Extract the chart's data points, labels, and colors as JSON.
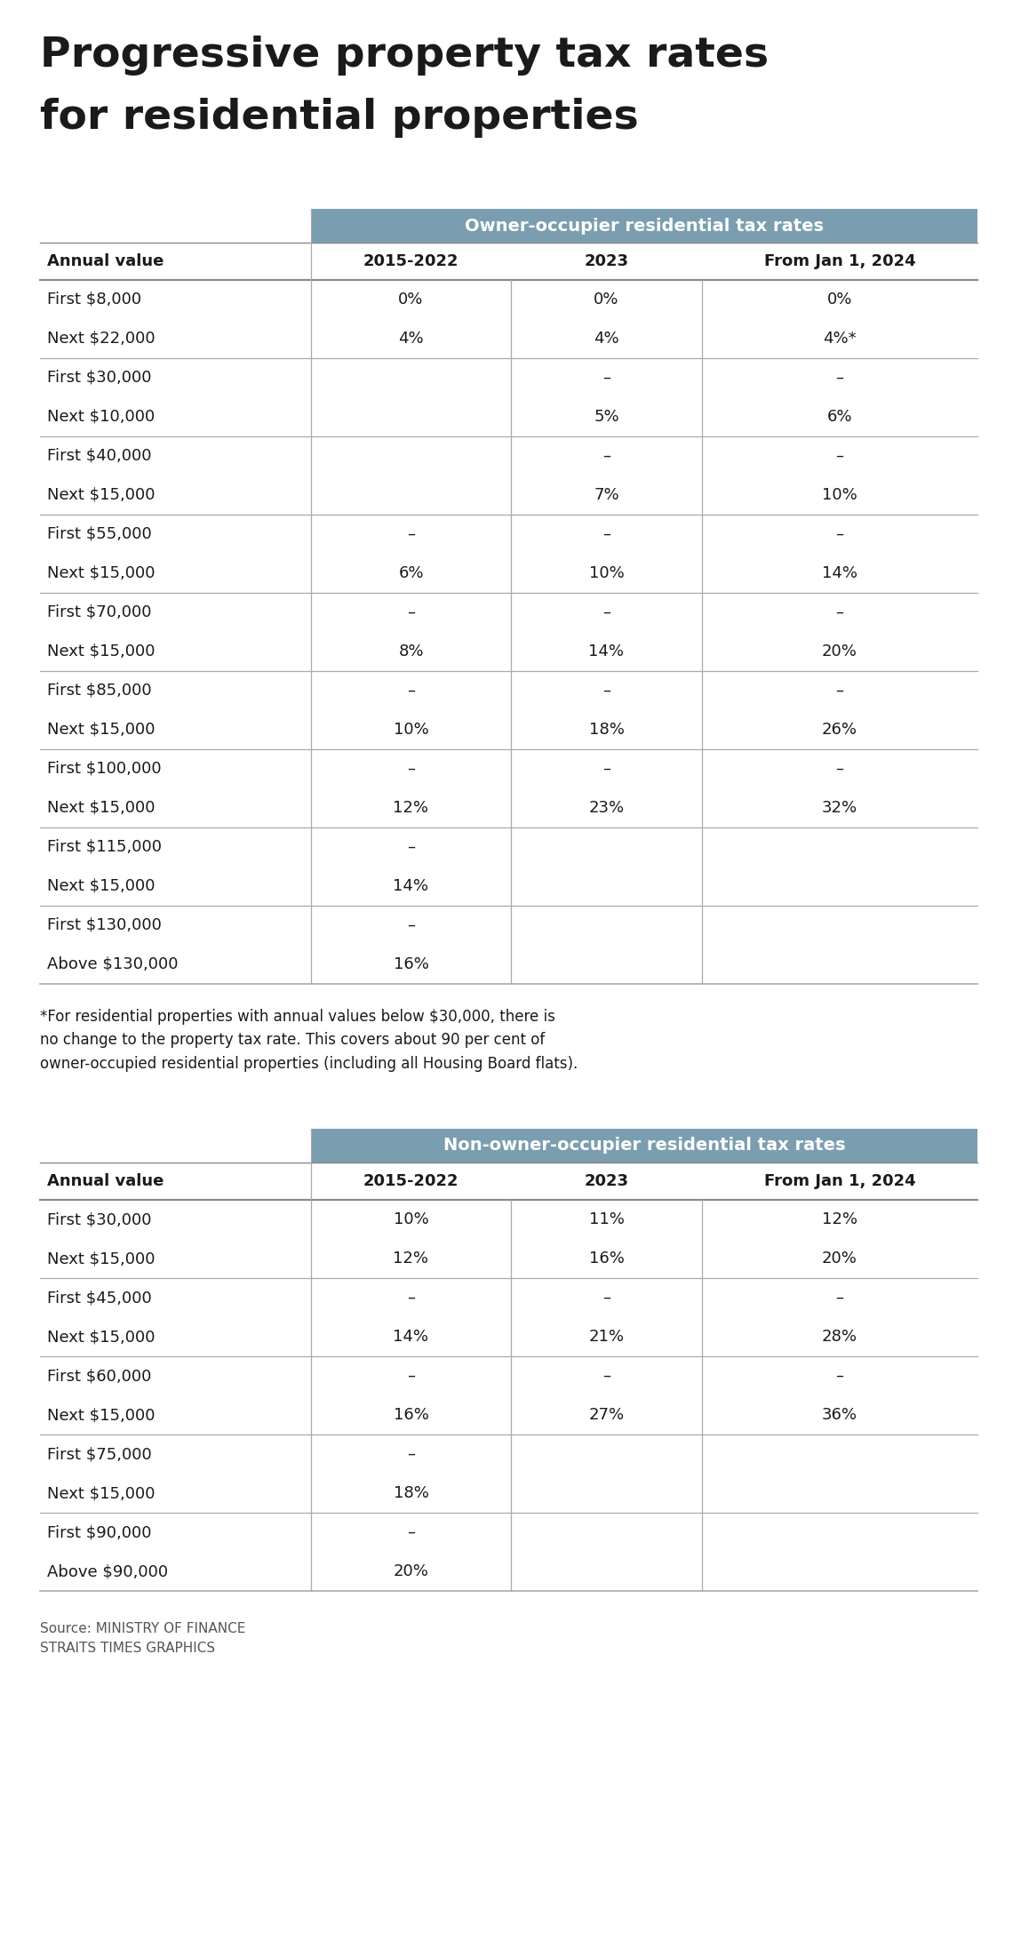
{
  "title_line1": "Progressive property tax rates",
  "title_line2": "for residential properties",
  "bg_color": "#ffffff",
  "header_bg_color": "#7a9eb0",
  "header_text_color": "#ffffff",
  "col_header_text_color": "#1a1a1a",
  "body_text_color": "#1a1a1a",
  "line_color": "#aaaaaa",
  "table1_header": "Owner-occupier residential tax rates",
  "table2_header": "Non-owner-occupier residential tax rates",
  "col_headers": [
    "Annual value",
    "2015-2022",
    "2023",
    "From Jan 1, 2024"
  ],
  "table1_rows": [
    [
      "First $8,000",
      "0%",
      "0%",
      "0%"
    ],
    [
      "Next $22,000",
      "4%",
      "4%",
      "4%*"
    ],
    [
      "First $30,000",
      "",
      "–",
      "–"
    ],
    [
      "Next $10,000",
      "",
      "5%",
      "6%"
    ],
    [
      "First $40,000",
      "",
      "–",
      "–"
    ],
    [
      "Next $15,000",
      "",
      "7%",
      "10%"
    ],
    [
      "First $55,000",
      "–",
      "–",
      "–"
    ],
    [
      "Next $15,000",
      "6%",
      "10%",
      "14%"
    ],
    [
      "First $70,000",
      "–",
      "–",
      "–"
    ],
    [
      "Next $15,000",
      "8%",
      "14%",
      "20%"
    ],
    [
      "First $85,000",
      "–",
      "–",
      "–"
    ],
    [
      "Next $15,000",
      "10%",
      "18%",
      "26%"
    ],
    [
      "First $100,000",
      "–",
      "–",
      "–"
    ],
    [
      "Next $15,000",
      "12%",
      "23%",
      "32%"
    ],
    [
      "First $115,000",
      "–",
      "",
      ""
    ],
    [
      "Next $15,000",
      "14%",
      "",
      ""
    ],
    [
      "First $130,000",
      "–",
      "",
      ""
    ],
    [
      "Above $130,000",
      "16%",
      "",
      ""
    ]
  ],
  "table1_row_groups": [
    [
      0,
      1
    ],
    [
      2,
      3
    ],
    [
      4,
      5
    ],
    [
      6,
      7
    ],
    [
      8,
      9
    ],
    [
      10,
      11
    ],
    [
      12,
      13
    ],
    [
      14,
      15
    ],
    [
      16,
      17
    ]
  ],
  "footnote": "*For residential properties with annual values below $30,000, there is\nno change to the property tax rate. This covers about 90 per cent of\nowner-occupied residential properties (including all Housing Board flats).",
  "table2_rows": [
    [
      "First $30,000",
      "10%",
      "11%",
      "12%"
    ],
    [
      "Next $15,000",
      "12%",
      "16%",
      "20%"
    ],
    [
      "First $45,000",
      "–",
      "–",
      "–"
    ],
    [
      "Next $15,000",
      "14%",
      "21%",
      "28%"
    ],
    [
      "First $60,000",
      "–",
      "–",
      "–"
    ],
    [
      "Next $15,000",
      "16%",
      "27%",
      "36%"
    ],
    [
      "First $75,000",
      "–",
      "",
      ""
    ],
    [
      "Next $15,000",
      "18%",
      "",
      ""
    ],
    [
      "First $90,000",
      "–",
      "",
      ""
    ],
    [
      "Above $90,000",
      "20%",
      "",
      ""
    ]
  ],
  "table2_row_groups": [
    [
      0,
      1
    ],
    [
      2,
      3
    ],
    [
      4,
      5
    ],
    [
      6,
      7
    ],
    [
      8,
      9
    ]
  ],
  "source_line1": "Source: MINISTRY OF FINANCE",
  "source_line2": "STRAITS TIMES GRAPHICS"
}
